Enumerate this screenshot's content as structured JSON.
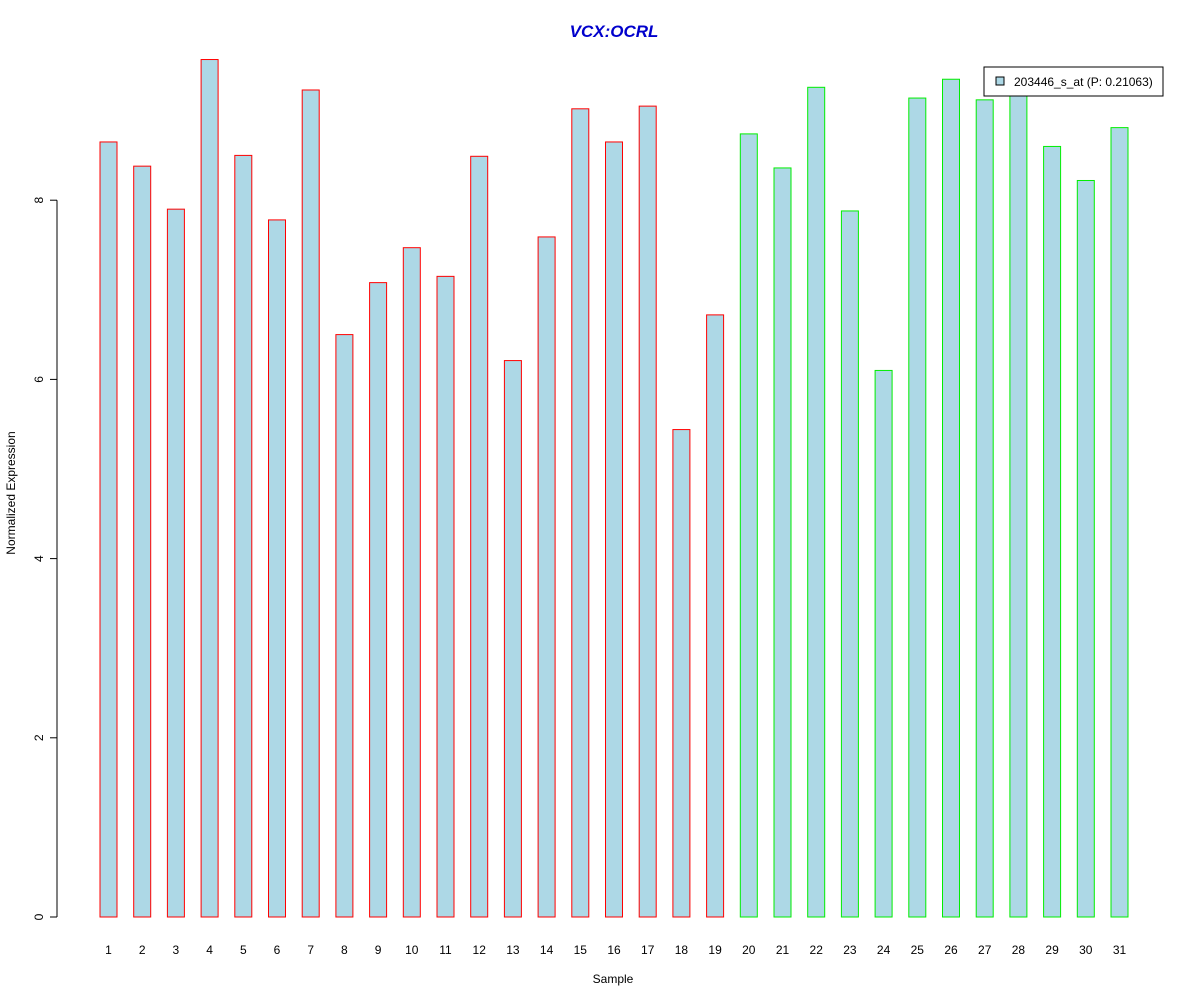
{
  "chart_data": {
    "type": "bar",
    "title": "VCX:OCRL",
    "xlabel": "Sample",
    "ylabel": "Normalized Expression",
    "ylim": [
      0,
      9.6
    ],
    "yticks": [
      0,
      2,
      4,
      6,
      8
    ],
    "grid": false,
    "legend_position": "top-right",
    "categories": [
      "1",
      "2",
      "3",
      "4",
      "5",
      "6",
      "7",
      "8",
      "9",
      "10",
      "11",
      "12",
      "13",
      "14",
      "15",
      "16",
      "17",
      "18",
      "19",
      "20",
      "21",
      "22",
      "23",
      "24",
      "25",
      "26",
      "27",
      "28",
      "29",
      "30",
      "31"
    ],
    "series": [
      {
        "name": "203446_s_at (P: 0.21063)",
        "values": [
          8.65,
          8.38,
          7.9,
          9.57,
          8.5,
          7.78,
          9.23,
          6.5,
          7.08,
          7.47,
          7.15,
          8.49,
          6.21,
          7.59,
          9.02,
          8.65,
          9.05,
          5.44,
          6.72,
          8.74,
          8.36,
          9.26,
          7.88,
          6.1,
          9.14,
          9.35,
          9.12,
          9.21,
          8.6,
          8.22,
          8.81
        ]
      }
    ],
    "bar_outline_colors": [
      "#ff0000",
      "#ff0000",
      "#ff0000",
      "#ff0000",
      "#ff0000",
      "#ff0000",
      "#ff0000",
      "#ff0000",
      "#ff0000",
      "#ff0000",
      "#ff0000",
      "#ff0000",
      "#ff0000",
      "#ff0000",
      "#ff0000",
      "#ff0000",
      "#ff0000",
      "#ff0000",
      "#ff0000",
      "#00ee00",
      "#00ee00",
      "#00ee00",
      "#00ee00",
      "#00ee00",
      "#00ee00",
      "#00ee00",
      "#00ee00",
      "#00ee00",
      "#00ee00",
      "#00ee00",
      "#00ee00"
    ],
    "bar_fill_color": "#add8e6",
    "title_color": "#0000cc",
    "axis_color": "#000000"
  }
}
